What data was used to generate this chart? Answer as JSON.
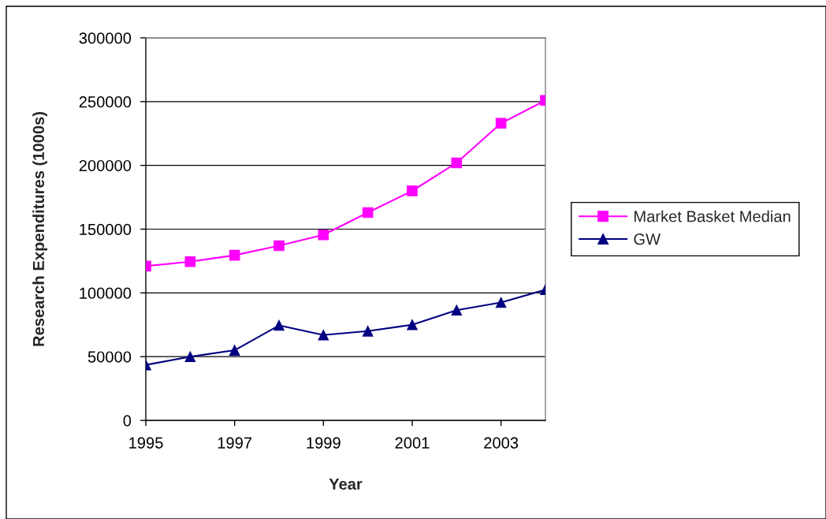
{
  "chart_data": {
    "type": "line",
    "xlabel": "Year",
    "ylabel": "Research Expenditures (1000s)",
    "x": [
      1995,
      1996,
      1997,
      1998,
      1999,
      2000,
      2001,
      2002,
      2003,
      2004
    ],
    "series": [
      {
        "name": "Market Basket Median",
        "color": "#ff00ff",
        "marker": "square",
        "values": [
          121000,
          124500,
          129500,
          137000,
          145500,
          163000,
          180000,
          202000,
          233000,
          251000
        ]
      },
      {
        "name": "GW",
        "color": "#000080",
        "marker": "triangle",
        "values": [
          43500,
          50000,
          55000,
          74500,
          67000,
          70000,
          75000,
          86500,
          92500,
          102500
        ]
      }
    ],
    "xlim": [
      1995,
      2004
    ],
    "xticks": [
      1995,
      1997,
      1999,
      2001,
      2003
    ],
    "ylim": [
      0,
      300000
    ],
    "yticks": [
      0,
      50000,
      100000,
      150000,
      200000,
      250000,
      300000
    ],
    "grid": "y",
    "legend": "right",
    "line_style": "solid"
  }
}
